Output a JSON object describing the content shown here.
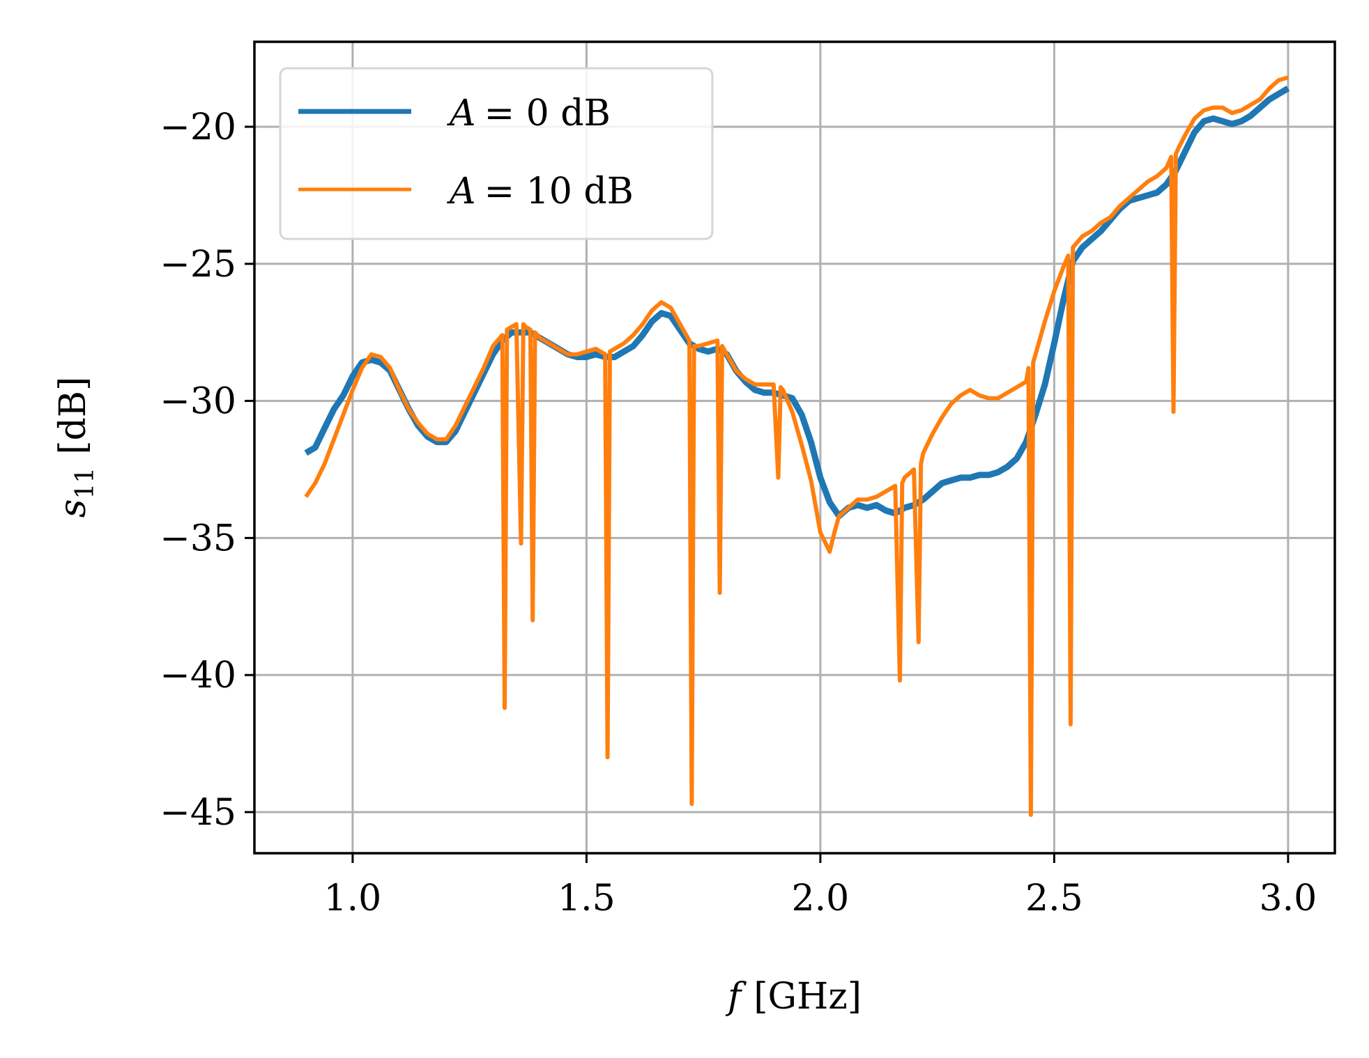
{
  "chart_data": {
    "type": "line",
    "xlabel": {
      "symbol": "f",
      "unit": "[GHz]"
    },
    "ylabel": {
      "symbol": "s",
      "subscript": "11",
      "unit": "[dB]"
    },
    "xlim": [
      0.79,
      3.1
    ],
    "ylim": [
      -46.5,
      -16.9
    ],
    "xticks": [
      1.0,
      1.5,
      2.0,
      2.5,
      3.0
    ],
    "xtick_labels": [
      "1.0",
      "1.5",
      "2.0",
      "2.5",
      "3.0"
    ],
    "yticks": [
      -20,
      -25,
      -30,
      -35,
      -40,
      -45
    ],
    "ytick_labels": [
      "−20",
      "−25",
      "−30",
      "−35",
      "−40",
      "−45"
    ],
    "grid": true,
    "legend_placement": "upper-left",
    "series": [
      {
        "name_symbol": "A",
        "name_value": "= 0 dB",
        "color": "#1f77b4",
        "x": [
          0.9,
          0.92,
          0.94,
          0.96,
          0.98,
          1.0,
          1.02,
          1.04,
          1.06,
          1.08,
          1.1,
          1.12,
          1.14,
          1.16,
          1.18,
          1.2,
          1.22,
          1.24,
          1.26,
          1.28,
          1.3,
          1.32,
          1.34,
          1.36,
          1.38,
          1.4,
          1.42,
          1.44,
          1.46,
          1.48,
          1.5,
          1.52,
          1.54,
          1.56,
          1.58,
          1.6,
          1.62,
          1.64,
          1.66,
          1.68,
          1.7,
          1.72,
          1.74,
          1.76,
          1.78,
          1.8,
          1.82,
          1.84,
          1.86,
          1.88,
          1.9,
          1.92,
          1.94,
          1.96,
          1.98,
          2.0,
          2.02,
          2.04,
          2.06,
          2.08,
          2.1,
          2.12,
          2.14,
          2.16,
          2.18,
          2.2,
          2.22,
          2.24,
          2.26,
          2.28,
          2.3,
          2.32,
          2.34,
          2.36,
          2.38,
          2.4,
          2.42,
          2.44,
          2.46,
          2.48,
          2.5,
          2.52,
          2.54,
          2.56,
          2.58,
          2.6,
          2.62,
          2.64,
          2.66,
          2.68,
          2.7,
          2.72,
          2.74,
          2.76,
          2.78,
          2.8,
          2.82,
          2.84,
          2.86,
          2.88,
          2.9,
          2.92,
          2.94,
          2.96,
          2.98,
          3.0
        ],
        "y": [
          -31.9,
          -31.7,
          -31.0,
          -30.3,
          -29.8,
          -29.1,
          -28.6,
          -28.5,
          -28.6,
          -28.9,
          -29.6,
          -30.3,
          -30.9,
          -31.3,
          -31.5,
          -31.5,
          -31.1,
          -30.4,
          -29.7,
          -29.0,
          -28.3,
          -27.8,
          -27.5,
          -27.5,
          -27.5,
          -27.7,
          -27.9,
          -28.1,
          -28.3,
          -28.4,
          -28.4,
          -28.3,
          -28.4,
          -28.4,
          -28.2,
          -28.0,
          -27.6,
          -27.1,
          -26.8,
          -26.9,
          -27.4,
          -27.9,
          -28.1,
          -28.2,
          -28.1,
          -28.3,
          -28.9,
          -29.3,
          -29.6,
          -29.7,
          -29.7,
          -29.8,
          -29.9,
          -30.5,
          -31.5,
          -32.8,
          -33.7,
          -34.2,
          -33.9,
          -33.8,
          -33.9,
          -33.8,
          -34.0,
          -34.1,
          -33.9,
          -33.8,
          -33.6,
          -33.3,
          -33.0,
          -32.9,
          -32.8,
          -32.8,
          -32.7,
          -32.7,
          -32.6,
          -32.4,
          -32.1,
          -31.5,
          -30.5,
          -29.4,
          -27.9,
          -26.3,
          -24.9,
          -24.4,
          -24.1,
          -23.8,
          -23.4,
          -23.0,
          -22.7,
          -22.6,
          -22.5,
          -22.4,
          -22.1,
          -21.6,
          -20.9,
          -20.2,
          -19.8,
          -19.7,
          -19.8,
          -19.9,
          -19.8,
          -19.6,
          -19.3,
          -19.0,
          -18.8,
          -18.6
        ]
      },
      {
        "name_symbol": "A",
        "name_value": "= 10 dB",
        "color": "#ff7f0e",
        "x": [
          0.9,
          0.92,
          0.94,
          0.96,
          0.98,
          1.0,
          1.02,
          1.04,
          1.06,
          1.08,
          1.1,
          1.12,
          1.14,
          1.16,
          1.18,
          1.2,
          1.22,
          1.24,
          1.26,
          1.28,
          1.3,
          1.32,
          1.325,
          1.33,
          1.34,
          1.35,
          1.36,
          1.365,
          1.37,
          1.38,
          1.385,
          1.39,
          1.4,
          1.42,
          1.44,
          1.46,
          1.48,
          1.5,
          1.52,
          1.54,
          1.545,
          1.55,
          1.56,
          1.58,
          1.6,
          1.62,
          1.64,
          1.66,
          1.68,
          1.7,
          1.72,
          1.725,
          1.73,
          1.74,
          1.76,
          1.78,
          1.785,
          1.79,
          1.8,
          1.82,
          1.84,
          1.86,
          1.88,
          1.9,
          1.91,
          1.915,
          1.92,
          1.94,
          1.96,
          1.98,
          2.0,
          2.02,
          2.03,
          2.04,
          2.06,
          2.08,
          2.1,
          2.12,
          2.14,
          2.16,
          2.17,
          2.175,
          2.18,
          2.2,
          2.21,
          2.215,
          2.22,
          2.24,
          2.26,
          2.28,
          2.3,
          2.32,
          2.34,
          2.36,
          2.38,
          2.4,
          2.42,
          2.44,
          2.445,
          2.45,
          2.455,
          2.46,
          2.48,
          2.5,
          2.52,
          2.53,
          2.535,
          2.54,
          2.56,
          2.58,
          2.6,
          2.62,
          2.64,
          2.66,
          2.68,
          2.7,
          2.72,
          2.74,
          2.75,
          2.755,
          2.76,
          2.765,
          2.78,
          2.8,
          2.82,
          2.84,
          2.86,
          2.88,
          2.9,
          2.92,
          2.94,
          2.96,
          2.98,
          3.0
        ],
        "y": [
          -33.5,
          -33.0,
          -32.3,
          -31.4,
          -30.5,
          -29.6,
          -28.8,
          -28.3,
          -28.4,
          -28.8,
          -29.6,
          -30.3,
          -30.8,
          -31.2,
          -31.4,
          -31.4,
          -30.9,
          -30.2,
          -29.5,
          -28.8,
          -28.0,
          -27.6,
          -41.2,
          -27.4,
          -27.3,
          -27.2,
          -35.2,
          -27.2,
          -27.3,
          -27.4,
          -38.0,
          -27.5,
          -27.7,
          -27.9,
          -28.1,
          -28.3,
          -28.3,
          -28.2,
          -28.1,
          -28.3,
          -43.0,
          -28.2,
          -28.1,
          -27.9,
          -27.6,
          -27.2,
          -26.7,
          -26.4,
          -26.6,
          -27.2,
          -27.8,
          -44.7,
          -28.0,
          -28.0,
          -27.9,
          -27.8,
          -37.0,
          -28.0,
          -28.3,
          -28.9,
          -29.2,
          -29.4,
          -29.4,
          -29.4,
          -32.8,
          -29.5,
          -29.6,
          -30.4,
          -31.6,
          -32.9,
          -34.8,
          -35.5,
          -34.8,
          -34.2,
          -33.9,
          -33.6,
          -33.6,
          -33.5,
          -33.3,
          -33.1,
          -40.2,
          -33.0,
          -32.8,
          -32.5,
          -38.8,
          -32.3,
          -31.9,
          -31.2,
          -30.6,
          -30.1,
          -29.8,
          -29.6,
          -29.8,
          -29.9,
          -29.9,
          -29.7,
          -29.5,
          -29.3,
          -28.8,
          -45.1,
          -28.6,
          -28.3,
          -27.1,
          -26.0,
          -25.1,
          -24.7,
          -41.8,
          -24.4,
          -24.0,
          -23.8,
          -23.5,
          -23.3,
          -22.9,
          -22.6,
          -22.3,
          -22.0,
          -21.8,
          -21.5,
          -21.1,
          -30.4,
          -21.0,
          -20.8,
          -20.3,
          -19.7,
          -19.4,
          -19.3,
          -19.3,
          -19.5,
          -19.4,
          -19.2,
          -19.0,
          -18.6,
          -18.3,
          -18.2
        ]
      }
    ]
  }
}
